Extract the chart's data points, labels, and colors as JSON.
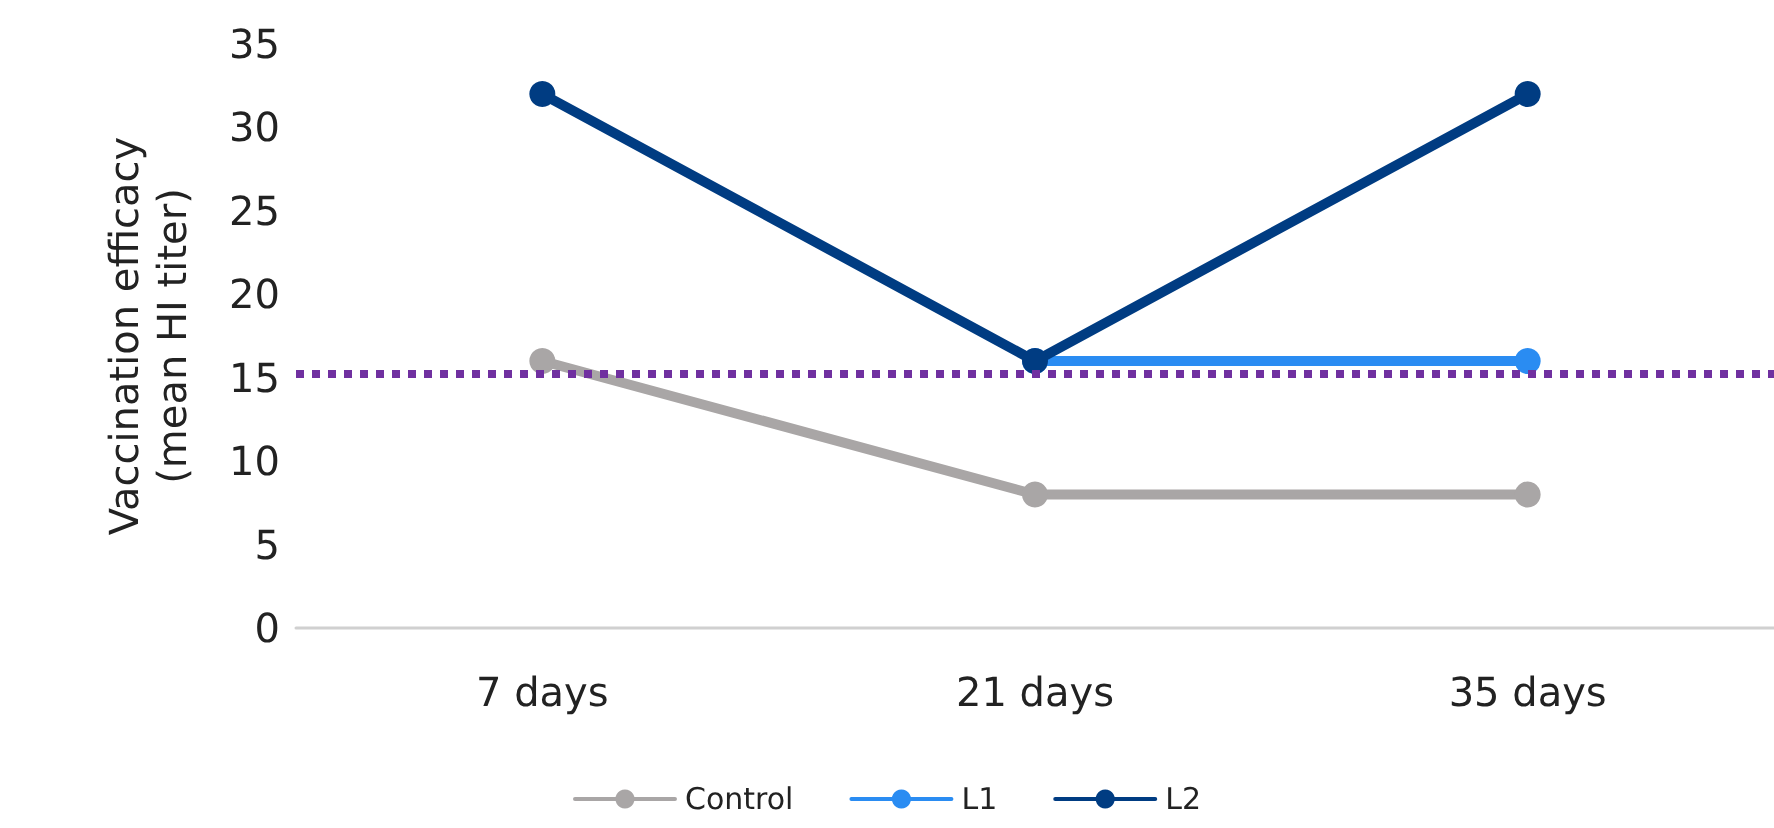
{
  "chart_data": {
    "type": "line",
    "ylabel": "Vaccination efficacy\n(mean HI titer)",
    "categories": [
      "7 days",
      "21 days",
      "35 days"
    ],
    "series": [
      {
        "name": "Control",
        "color": "#a9a6a6",
        "values": [
          16,
          8,
          8
        ]
      },
      {
        "name": "L1",
        "color": "#2a8cf2",
        "values": [
          null,
          16,
          16
        ]
      },
      {
        "name": "L2",
        "color": "#003c82",
        "values": [
          32,
          16,
          32
        ]
      }
    ],
    "ylim": [
      0,
      35
    ],
    "yticks": [
      0,
      5,
      10,
      15,
      20,
      25,
      30,
      35
    ],
    "ref_lines": [
      {
        "axis": "y",
        "value": 15.3,
        "color": "#7030a0",
        "line_style": "dotted"
      }
    ],
    "grid": false,
    "legend": "bottom",
    "marker": "circle",
    "line_style": "solid"
  }
}
